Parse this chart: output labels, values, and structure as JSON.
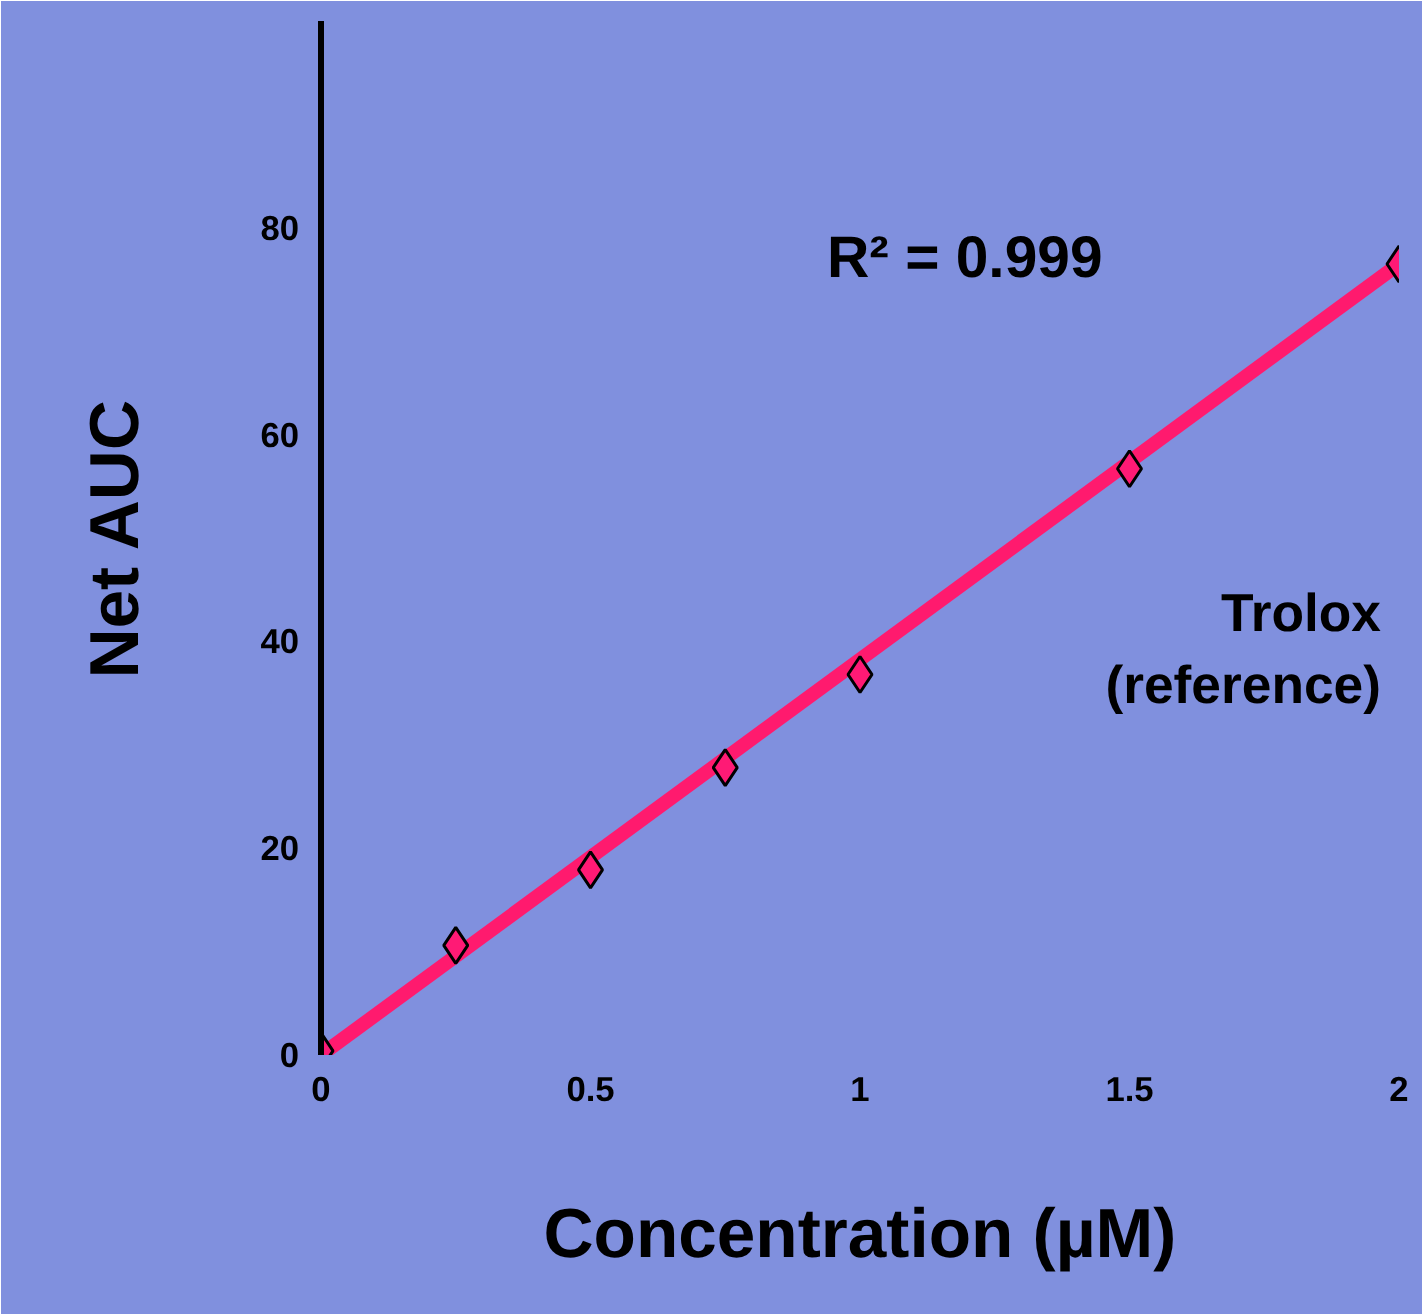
{
  "chart_data": {
    "type": "scatter",
    "xlabel": "Concentration (µM)",
    "ylabel": "Net AUC",
    "series": [
      {
        "color": "#ff1a75",
        "marker": "diamond",
        "x": [
          0,
          0.25,
          0.5,
          0.75,
          1,
          1.5,
          2
        ],
        "values": [
          0.4,
          10.6,
          17.9,
          27.8,
          36.8,
          56.7,
          76.5
        ]
      },
      {
        "type": "line",
        "color": "#ff1a6e",
        "x": [
          0,
          2
        ],
        "values": [
          0,
          76.5
        ]
      }
    ],
    "xlim": [
      0,
      2
    ],
    "ylim": [
      0,
      100
    ],
    "xticks": [
      0,
      0.5,
      1,
      1.5,
      2
    ],
    "yticks": [
      0,
      20,
      40,
      60,
      80
    ],
    "grid": false,
    "annotations": [
      "R² = 0.999",
      "Trolox\n(reference)"
    ]
  }
}
